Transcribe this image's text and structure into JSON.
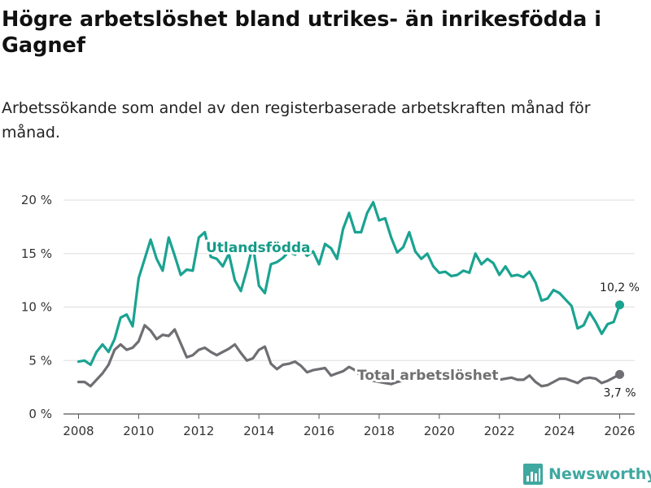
{
  "header": {
    "title": "Högre arbetslöshet bland utrikes- än inrikesfödda i Gagnef",
    "subtitle": "Arbetssökande som andel av den registerbaserade arbetskraften månad för månad."
  },
  "brand": {
    "name": "Newsworthy",
    "color": "#3fa8a0"
  },
  "chart_data": {
    "type": "line",
    "title": "Högre arbetslöshet bland utrikes- än inrikesfödda i Gagnef",
    "xlabel": "",
    "ylabel": "",
    "xlim": [
      2007.5,
      2026.5
    ],
    "ylim": [
      0,
      20
    ],
    "x_ticks": [
      2008,
      2010,
      2012,
      2014,
      2016,
      2018,
      2020,
      2022,
      2024,
      2026
    ],
    "x_tick_labels": [
      "2008",
      "2010",
      "2012",
      "2014",
      "2016",
      "2018",
      "2020",
      "2022",
      "2024",
      "2026"
    ],
    "y_ticks": [
      0,
      5,
      10,
      15,
      20
    ],
    "y_tick_labels": [
      "0 %",
      "5 %",
      "10 %",
      "15 %",
      "20 %"
    ],
    "grid": true,
    "series": [
      {
        "name": "Utlandsfödda",
        "color": "#1aa391",
        "label": "Utlandsfödda",
        "end_label": "10,2 %",
        "end_value": 10.2,
        "x": [
          2008.0,
          2008.2,
          2008.4,
          2008.6,
          2008.8,
          2009.0,
          2009.2,
          2009.4,
          2009.6,
          2009.8,
          2010.0,
          2010.2,
          2010.4,
          2010.6,
          2010.8,
          2011.0,
          2011.2,
          2011.4,
          2011.6,
          2011.8,
          2012.0,
          2012.2,
          2012.4,
          2012.6,
          2012.8,
          2013.0,
          2013.2,
          2013.4,
          2013.6,
          2013.8,
          2014.0,
          2014.2,
          2014.4,
          2014.6,
          2014.8,
          2015.0,
          2015.2,
          2015.4,
          2015.6,
          2015.8,
          2016.0,
          2016.2,
          2016.4,
          2016.6,
          2016.8,
          2017.0,
          2017.2,
          2017.4,
          2017.6,
          2017.8,
          2018.0,
          2018.2,
          2018.4,
          2018.6,
          2018.8,
          2019.0,
          2019.2,
          2019.4,
          2019.6,
          2019.8,
          2020.0,
          2020.2,
          2020.4,
          2020.6,
          2020.8,
          2021.0,
          2021.2,
          2021.4,
          2021.6,
          2021.8,
          2022.0,
          2022.2,
          2022.4,
          2022.6,
          2022.8,
          2023.0,
          2023.2,
          2023.4,
          2023.6,
          2023.8,
          2024.0,
          2024.2,
          2024.4,
          2024.6,
          2024.8,
          2025.0,
          2025.2,
          2025.4,
          2025.6,
          2025.8,
          2026.0
        ],
        "values": [
          4.9,
          5.0,
          4.6,
          5.8,
          6.5,
          5.8,
          7.0,
          9.0,
          9.3,
          8.2,
          12.7,
          14.5,
          16.3,
          14.5,
          13.4,
          16.5,
          14.8,
          13.0,
          13.5,
          13.4,
          16.5,
          17.0,
          14.7,
          14.5,
          13.8,
          15.0,
          12.5,
          11.5,
          13.5,
          15.8,
          12.0,
          11.3,
          14.0,
          14.2,
          14.6,
          15.2,
          14.9,
          15.5,
          14.8,
          15.2,
          14.0,
          15.9,
          15.5,
          14.5,
          17.3,
          18.8,
          17.0,
          17.0,
          18.8,
          19.8,
          18.1,
          18.3,
          16.5,
          15.1,
          15.6,
          17.0,
          15.2,
          14.5,
          15.0,
          13.8,
          13.2,
          13.3,
          12.9,
          13.0,
          13.4,
          13.2,
          15.0,
          14.0,
          14.5,
          14.1,
          13.0,
          13.8,
          12.9,
          13.0,
          12.8,
          13.3,
          12.3,
          10.6,
          10.8,
          11.6,
          11.3,
          10.7,
          10.1,
          8.0,
          8.3,
          9.5,
          8.6,
          7.5,
          8.4,
          8.6,
          10.2
        ]
      },
      {
        "name": "Total arbetslöshet",
        "color": "#6e6e73",
        "label": "Total arbetslöshet",
        "end_label": "3,7 %",
        "end_value": 3.7,
        "x": [
          2008.0,
          2008.2,
          2008.4,
          2008.6,
          2008.8,
          2009.0,
          2009.2,
          2009.4,
          2009.6,
          2009.8,
          2010.0,
          2010.2,
          2010.4,
          2010.6,
          2010.8,
          2011.0,
          2011.2,
          2011.4,
          2011.6,
          2011.8,
          2012.0,
          2012.2,
          2012.4,
          2012.6,
          2012.8,
          2013.0,
          2013.2,
          2013.4,
          2013.6,
          2013.8,
          2014.0,
          2014.2,
          2014.4,
          2014.6,
          2014.8,
          2015.0,
          2015.2,
          2015.4,
          2015.6,
          2015.8,
          2016.0,
          2016.2,
          2016.4,
          2016.6,
          2016.8,
          2017.0,
          2017.2,
          2017.4,
          2017.6,
          2017.8,
          2018.0,
          2018.2,
          2018.4,
          2018.6,
          2018.8,
          2019.0,
          2019.2,
          2019.4,
          2019.6,
          2019.8,
          2020.0,
          2020.2,
          2020.4,
          2020.6,
          2020.8,
          2021.0,
          2021.2,
          2021.4,
          2021.6,
          2021.8,
          2022.0,
          2022.2,
          2022.4,
          2022.6,
          2022.8,
          2023.0,
          2023.2,
          2023.4,
          2023.6,
          2023.8,
          2024.0,
          2024.2,
          2024.4,
          2024.6,
          2024.8,
          2025.0,
          2025.2,
          2025.4,
          2025.6,
          2025.8,
          2026.0
        ],
        "values": [
          3.0,
          3.0,
          2.6,
          3.2,
          3.8,
          4.6,
          6.0,
          6.5,
          6.0,
          6.2,
          6.8,
          8.3,
          7.8,
          7.0,
          7.4,
          7.3,
          7.9,
          6.6,
          5.3,
          5.5,
          6.0,
          6.2,
          5.8,
          5.5,
          5.8,
          6.1,
          6.5,
          5.7,
          5.0,
          5.2,
          6.0,
          6.3,
          4.7,
          4.2,
          4.6,
          4.7,
          4.9,
          4.5,
          3.9,
          4.1,
          4.2,
          4.3,
          3.6,
          3.8,
          4.0,
          4.4,
          4.1,
          3.5,
          3.3,
          3.1,
          3.0,
          2.9,
          2.8,
          3.0,
          3.1,
          3.2,
          3.3,
          3.2,
          3.3,
          3.3,
          3.4,
          3.5,
          3.6,
          3.8,
          3.5,
          3.4,
          3.5,
          3.4,
          3.3,
          3.3,
          3.2,
          3.3,
          3.4,
          3.2,
          3.2,
          3.6,
          3.0,
          2.6,
          2.7,
          3.0,
          3.3,
          3.3,
          3.1,
          2.9,
          3.3,
          3.4,
          3.3,
          2.9,
          3.1,
          3.4,
          3.7
        ]
      }
    ]
  }
}
